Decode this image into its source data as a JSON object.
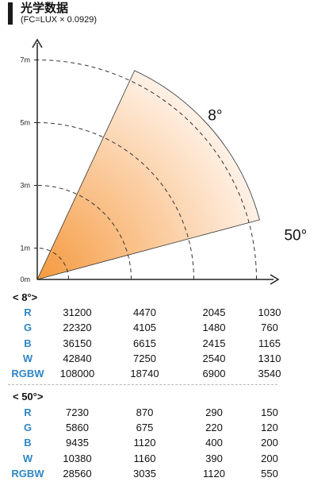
{
  "header": {
    "title": "光学数据",
    "subtitle": "(FC=LUX × 0.0929)"
  },
  "chart_data": {
    "type": "beam-angle-diagram",
    "beams": [
      {
        "label": "8°",
        "angle_deg": 8
      },
      {
        "label": "50°",
        "angle_deg": 50
      }
    ],
    "distance_ticks": [
      "0m",
      "1m",
      "3m",
      "5m",
      "7m"
    ],
    "distance_values": [
      0,
      1,
      3,
      5,
      7
    ],
    "colors": {
      "wide_inner": "#f59a3f",
      "wide_outer": "#fff4ec",
      "narrow_inner": "#f6ee3a",
      "narrow_outer": "#fffbe0"
    }
  },
  "tables": [
    {
      "label": "< 8°>",
      "rows": [
        {
          "ch": "R",
          "values": [
            "31200",
            "4470",
            "2045",
            "1030"
          ]
        },
        {
          "ch": "G",
          "values": [
            "22320",
            "4105",
            "1480",
            "760"
          ]
        },
        {
          "ch": "B",
          "values": [
            "36150",
            "6615",
            "2415",
            "1165"
          ]
        },
        {
          "ch": "W",
          "values": [
            "42840",
            "7250",
            "2540",
            "1310"
          ]
        },
        {
          "ch": "RGBW",
          "values": [
            "108000",
            "18740",
            "6900",
            "3540"
          ]
        }
      ]
    },
    {
      "label": "< 50°>",
      "rows": [
        {
          "ch": "R",
          "values": [
            "7230",
            "870",
            "290",
            "150"
          ]
        },
        {
          "ch": "G",
          "values": [
            "5860",
            "675",
            "220",
            "120"
          ]
        },
        {
          "ch": "B",
          "values": [
            "9435",
            "1120",
            "400",
            "200"
          ]
        },
        {
          "ch": "W",
          "values": [
            "10380",
            "1160",
            "390",
            "200"
          ]
        },
        {
          "ch": "RGBW",
          "values": [
            "28560",
            "3035",
            "1120",
            "550"
          ]
        }
      ]
    }
  ]
}
